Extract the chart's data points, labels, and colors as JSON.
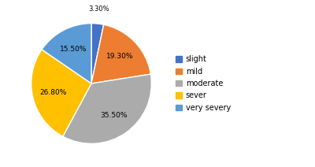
{
  "labels": [
    "slight",
    "mild",
    "moderate",
    "sever",
    "very severy"
  ],
  "values": [
    3.3,
    19.3,
    35.5,
    26.8,
    15.5
  ],
  "colors": [
    "#4472C4",
    "#ED7D31",
    "#ABABAB",
    "#FFC000",
    "#5B9BD5"
  ],
  "pct_labels": [
    "3.30%",
    "19.30%",
    "35.50%",
    "26.80%",
    "15.50%"
  ],
  "startangle": 90,
  "legend_labels": [
    "slight",
    "mild",
    "moderate",
    "sever",
    "very severy"
  ],
  "figsize": [
    4.0,
    2.12
  ],
  "dpi": 100
}
